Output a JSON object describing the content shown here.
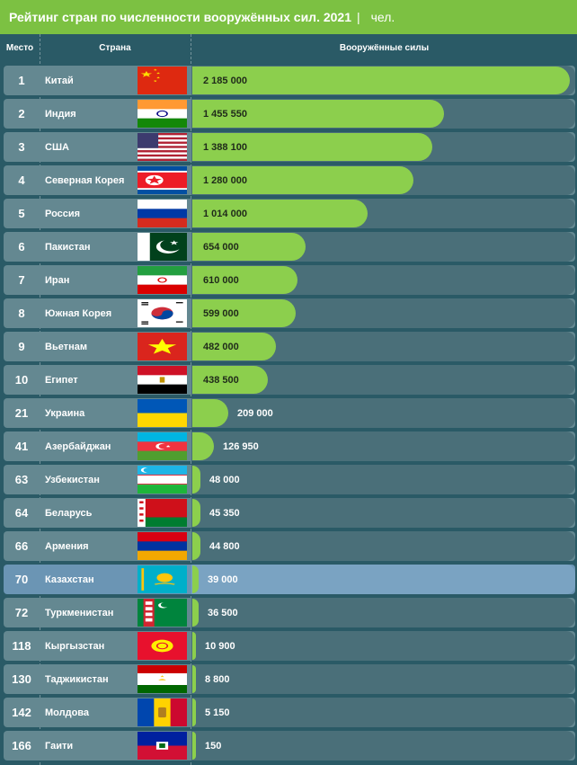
{
  "header": {
    "title": "Рейтинг стран по численности вооружённых сил. 2021",
    "separator": "|",
    "unit": "чел."
  },
  "columns": {
    "rank": "Место",
    "country": "Страна",
    "forces": "Вооружённые силы"
  },
  "chart_data": {
    "type": "bar",
    "orientation": "horizontal",
    "title": "Рейтинг стран по численности вооружённых сил. 2021",
    "unit": "чел.",
    "rows": [
      {
        "rank": "1",
        "country": "Китай",
        "value": 2185000,
        "label": "2 185 000",
        "flag": "china"
      },
      {
        "rank": "2",
        "country": "Индия",
        "value": 1455550,
        "label": "1 455 550",
        "flag": "india"
      },
      {
        "rank": "3",
        "country": "США",
        "value": 1388100,
        "label": "1 388 100",
        "flag": "usa"
      },
      {
        "rank": "4",
        "country": "Северная Корея",
        "value": 1280000,
        "label": "1 280 000",
        "flag": "north-korea"
      },
      {
        "rank": "5",
        "country": "Россия",
        "value": 1014000,
        "label": "1 014 000",
        "flag": "russia"
      },
      {
        "rank": "6",
        "country": "Пакистан",
        "value": 654000,
        "label": "654 000",
        "flag": "pakistan"
      },
      {
        "rank": "7",
        "country": "Иран",
        "value": 610000,
        "label": "610 000",
        "flag": "iran"
      },
      {
        "rank": "8",
        "country": "Южная Корея",
        "value": 599000,
        "label": "599 000",
        "flag": "south-korea"
      },
      {
        "rank": "9",
        "country": "Вьетнам",
        "value": 482000,
        "label": "482 000",
        "flag": "vietnam"
      },
      {
        "rank": "10",
        "country": "Египет",
        "value": 438500,
        "label": "438 500",
        "flag": "egypt"
      },
      {
        "rank": "21",
        "country": "Украина",
        "value": 209000,
        "label": "209 000",
        "flag": "ukraine"
      },
      {
        "rank": "41",
        "country": "Азербайджан",
        "value": 126950,
        "label": "126 950",
        "flag": "azerbaijan"
      },
      {
        "rank": "63",
        "country": "Узбекистан",
        "value": 48000,
        "label": "48 000",
        "flag": "uzbekistan"
      },
      {
        "rank": "64",
        "country": "Беларусь",
        "value": 45350,
        "label": "45 350",
        "flag": "belarus"
      },
      {
        "rank": "66",
        "country": "Армения",
        "value": 44800,
        "label": "44 800",
        "flag": "armenia"
      },
      {
        "rank": "70",
        "country": "Казахстан",
        "value": 39000,
        "label": "39 000",
        "flag": "kazakhstan",
        "highlight": true
      },
      {
        "rank": "72",
        "country": "Туркменистан",
        "value": 36500,
        "label": "36 500",
        "flag": "turkmenistan"
      },
      {
        "rank": "118",
        "country": "Кыргызстан",
        "value": 10900,
        "label": "10 900",
        "flag": "kyrgyzstan"
      },
      {
        "rank": "130",
        "country": "Таджикистан",
        "value": 8800,
        "label": "8 800",
        "flag": "tajikistan"
      },
      {
        "rank": "142",
        "country": "Молдова",
        "value": 5150,
        "label": "5 150",
        "flag": "moldova"
      },
      {
        "rank": "166",
        "country": "Гаити",
        "value": 150,
        "label": "150",
        "flag": "haiti"
      }
    ]
  },
  "colors": {
    "background": "#2a5a66",
    "header": "#7cc142",
    "bar": "#8ccf4d",
    "row": "#648891",
    "highlight": "#6b95b4"
  }
}
